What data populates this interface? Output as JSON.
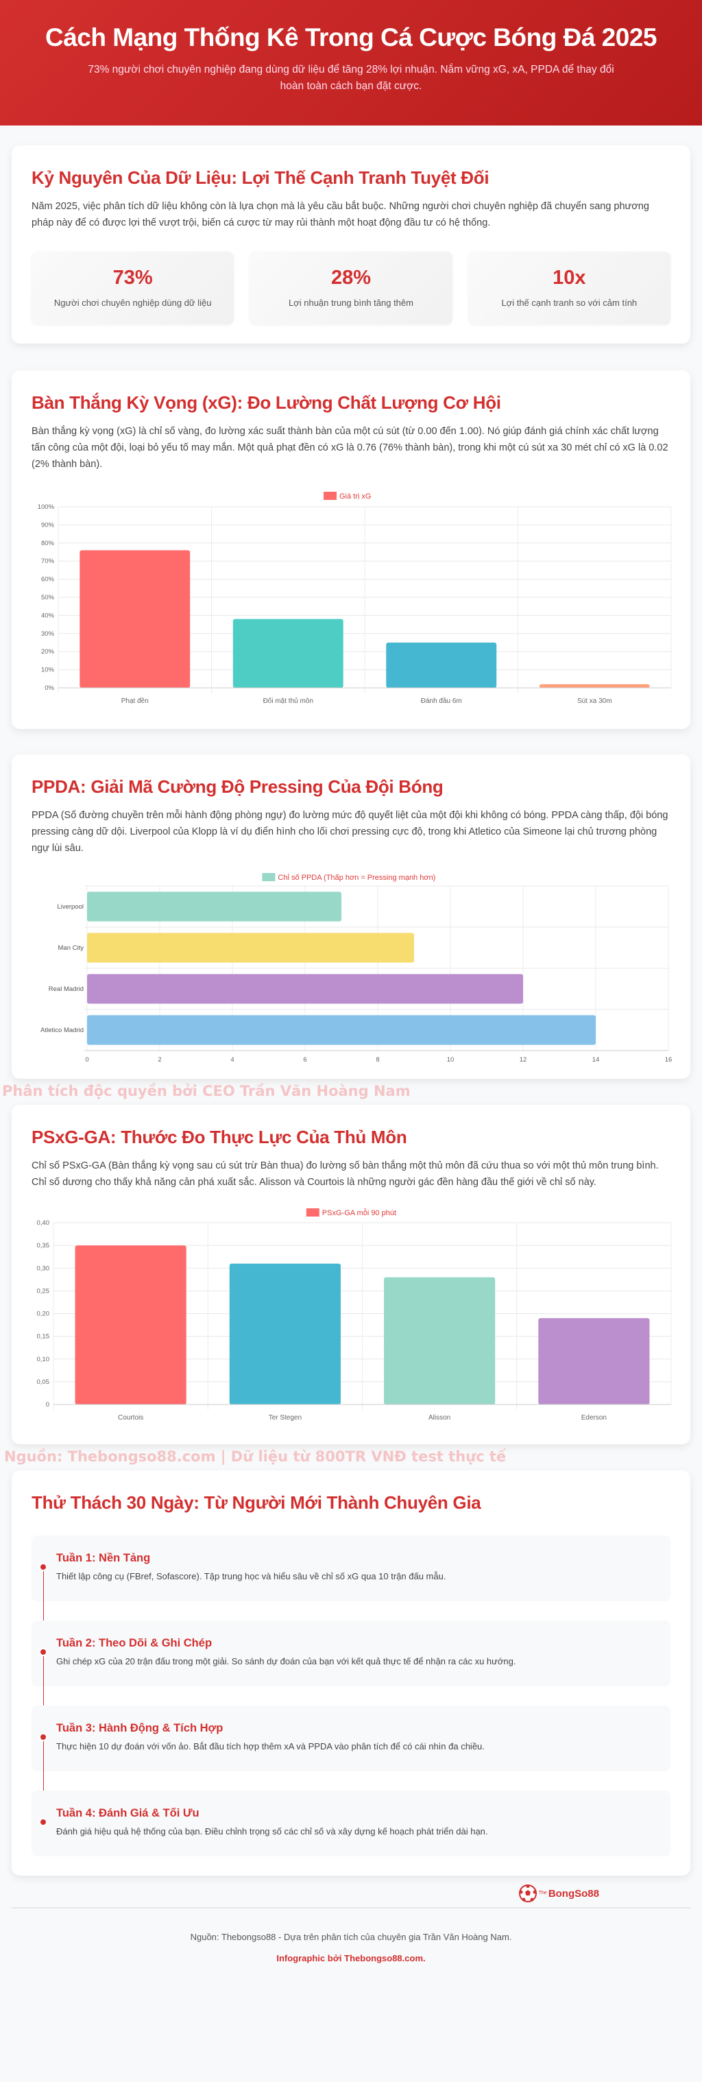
{
  "header": {
    "title": "Cách Mạng Thống Kê Trong Cá Cược Bóng Đá 2025",
    "subtitle": "73% người chơi chuyên nghiệp đang dùng dữ liệu để tăng 28% lợi nhuận. Nắm vững xG, xA, PPDA để thay đổi hoàn toàn cách bạn đặt cược."
  },
  "intro": {
    "title": "Kỷ Nguyên Của Dữ Liệu: Lợi Thế Cạnh Tranh Tuyệt Đối",
    "text": "Năm 2025, việc phân tích dữ liệu không còn là lựa chọn mà là yêu cầu bắt buộc. Những người chơi chuyên nghiệp đã chuyển sang phương pháp này để có được lợi thế vượt trội, biến cá cược từ may rủi thành một hoạt động đầu tư có hệ thống.",
    "stats": [
      {
        "value": "73%",
        "label": "Người chơi chuyên nghiệp dùng dữ liệu"
      },
      {
        "value": "28%",
        "label": "Lợi nhuận trung bình tăng thêm"
      },
      {
        "value": "10x",
        "label": "Lợi thế cạnh tranh so với cảm tính"
      }
    ]
  },
  "xg": {
    "title": "Bàn Thắng Kỳ Vọng (xG): Đo Lường Chất Lượng Cơ Hội",
    "text": "Bàn thắng kỳ vọng (xG) là chỉ số vàng, đo lường xác suất thành bàn của một cú sút (từ 0.00 đến 1.00). Nó giúp đánh giá chính xác chất lượng tấn công của một đội, loại bỏ yếu tố may mắn. Một quả phạt đền có xG là 0.76 (76% thành bàn), trong khi một cú sút xa 30 mét chỉ có xG là 0.02 (2% thành bàn)."
  },
  "ppda": {
    "title": "PPDA: Giải Mã Cường Độ Pressing Của Đội Bóng",
    "text": "PPDA (Số đường chuyền trên mỗi hành động phòng ngự) đo lường mức độ quyết liệt của một đội khi không có bóng. PPDA càng thấp, đội bóng pressing càng dữ dội. Liverpool của Klopp là ví dụ điển hình cho lối chơi pressing cực độ, trong khi Atletico của Simeone lại chủ trương phòng ngự lùi sâu."
  },
  "watermark1": "Phân tích độc quyền bởi CEO Trần Văn Hoàng Nam",
  "psxg": {
    "title": "PSxG-GA: Thước Đo Thực Lực Của Thủ Môn",
    "text": "Chỉ số PSxG-GA (Bàn thắng kỳ vọng sau cú sút trừ Bàn thua) đo lường số bàn thắng một thủ môn đã cứu thua so với một thủ môn trung bình. Chỉ số dương cho thấy khả năng cản phá xuất sắc. Alisson và Courtois là những người gác đền hàng đầu thế giới về chỉ số này."
  },
  "watermark2": "Nguồn: Thebongso88.com | Dữ liệu từ 800TR VNĐ test thực tế",
  "challenge": {
    "title": "Thử Thách 30 Ngày: Từ Người Mới Thành Chuyên Gia",
    "weeks": [
      {
        "title": "Tuần 1: Nền Tảng",
        "text": "Thiết lập công cụ (FBref, Sofascore). Tập trung học và hiểu sâu về chỉ số xG qua 10 trận đấu mẫu."
      },
      {
        "title": "Tuần 2: Theo Dõi & Ghi Chép",
        "text": "Ghi chép xG của 20 trận đấu trong một giải. So sánh dự đoán của bạn với kết quả thực tế để nhận ra các xu hướng."
      },
      {
        "title": "Tuần 3: Hành Động & Tích Hợp",
        "text": "Thực hiện 10 dự đoán với vốn ảo. Bắt đầu tích hợp thêm xA và PPDA vào phân tích để có cái nhìn đa chiều."
      },
      {
        "title": "Tuần 4: Đánh Giá & Tối Ưu",
        "text": "Đánh giá hiệu quả hệ thống của bạn. Điều chỉnh trọng số các chỉ số và xây dựng kế hoạch phát triển dài hạn."
      }
    ]
  },
  "logo": {
    "text": "BongSo88",
    "prefix": "The"
  },
  "footer": {
    "source": "Nguồn: Thebongso88 - Dựa trên phân tích của chuyên gia Trần Văn Hoàng Nam.",
    "credit": "Infographic bởi Thebongso88.com."
  },
  "chart_data": [
    {
      "type": "bar",
      "orientation": "vertical",
      "legend": "Giá trị xG",
      "legend_color": "#ff6b6b",
      "categories": [
        "Phạt đền",
        "Đối mặt thủ môn",
        "Đánh đầu 6m",
        "Sút xa 30m"
      ],
      "values": [
        76,
        38,
        25,
        2
      ],
      "colors": [
        "#ff6b6b",
        "#4ecdc4",
        "#45b7d1",
        "#ffa07a"
      ],
      "ylim": [
        0,
        100
      ],
      "yticks": [
        "0%",
        "10%",
        "20%",
        "30%",
        "40%",
        "50%",
        "60%",
        "70%",
        "80%",
        "90%",
        "100%"
      ],
      "grid": true,
      "legend_position": "top"
    },
    {
      "type": "bar",
      "orientation": "horizontal",
      "legend": "Chỉ số PPDA (Thấp hơn = Pressing mạnh hơn)",
      "legend_color": "#98d8c8",
      "categories": [
        "Liverpool",
        "Man City",
        "Real Madrid",
        "Atletico Madrid"
      ],
      "values": [
        7,
        9,
        12,
        14
      ],
      "colors": [
        "#98d8c8",
        "#f7dc6f",
        "#bb8fce",
        "#85c1e9"
      ],
      "xlim": [
        0,
        16
      ],
      "xticks": [
        "0",
        "2",
        "4",
        "6",
        "8",
        "10",
        "12",
        "14",
        "16"
      ],
      "grid": true,
      "legend_position": "top"
    },
    {
      "type": "bar",
      "orientation": "vertical",
      "legend": "PSxG-GA mỗi 90 phút",
      "legend_color": "#ff6b6b",
      "categories": [
        "Courtois",
        "Ter Stegen",
        "Alisson",
        "Ederson"
      ],
      "values": [
        0.35,
        0.31,
        0.28,
        0.19
      ],
      "colors": [
        "#ff6b6b",
        "#45b7d1",
        "#98d8c8",
        "#bb8fce"
      ],
      "ylim": [
        0,
        0.4
      ],
      "yticks": [
        "0",
        "0,05",
        "0,10",
        "0,15",
        "0,20",
        "0,25",
        "0,30",
        "0,35",
        "0,40"
      ],
      "grid": true,
      "legend_position": "top"
    }
  ]
}
